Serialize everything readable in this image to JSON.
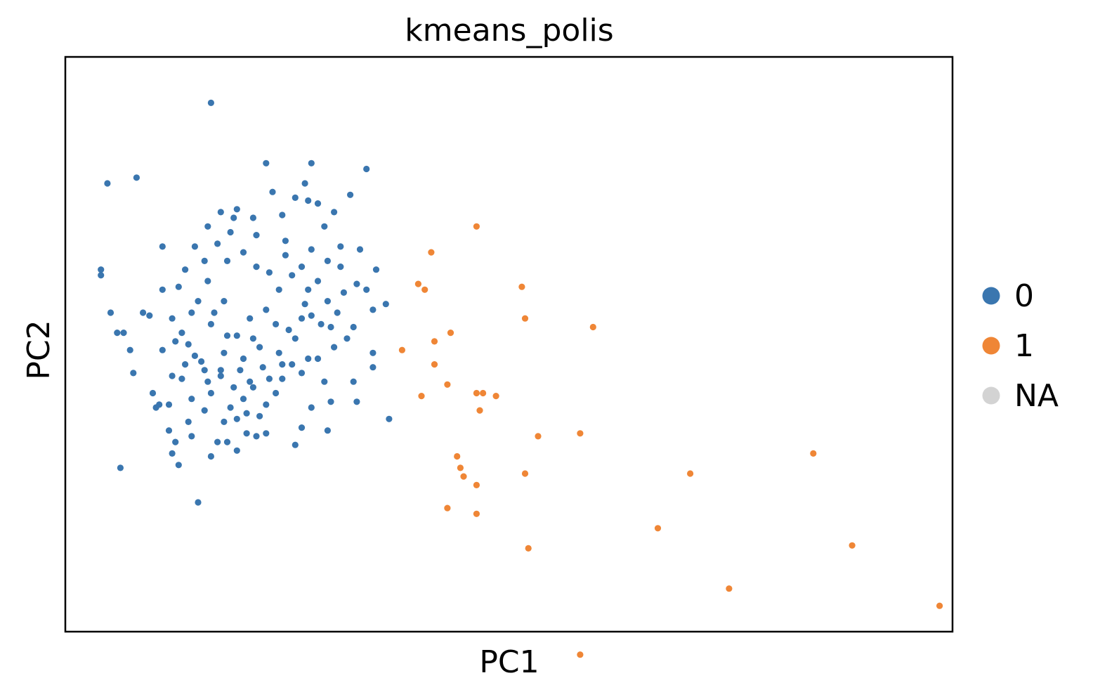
{
  "chart_data": {
    "type": "scatter",
    "title": "kmeans_polis",
    "xlabel": "PC1",
    "ylabel": "PC2",
    "xlim": [
      -3.2,
      10.5
    ],
    "ylim": [
      -5.0,
      5.0
    ],
    "ticks": "none",
    "grid": false,
    "legend_position": "right",
    "legend": [
      {
        "label": "0",
        "color": "#3a76af"
      },
      {
        "label": "1",
        "color": "#ef8636"
      },
      {
        "label": "NA",
        "color": "#d3d3d3"
      }
    ],
    "series": [
      {
        "name": "0",
        "color": "#3a76af",
        "points": [
          [
            -0.95,
            4.2
          ],
          [
            -2.55,
            2.8
          ],
          [
            -2.65,
            1.3
          ],
          [
            -2.65,
            1.2
          ],
          [
            -2.1,
            2.9
          ],
          [
            -1.7,
            1.7
          ],
          [
            -2.5,
            0.55
          ],
          [
            -2.4,
            0.2
          ],
          [
            -2.3,
            0.2
          ],
          [
            -2.2,
            -0.1
          ],
          [
            -2.15,
            -0.5
          ],
          [
            -2.0,
            0.55
          ],
          [
            -1.85,
            -0.85
          ],
          [
            -1.75,
            -1.05
          ],
          [
            -1.8,
            -1.1
          ],
          [
            -1.6,
            -1.5
          ],
          [
            -1.5,
            -1.7
          ],
          [
            -2.35,
            -2.15
          ],
          [
            -1.15,
            -2.75
          ],
          [
            -0.85,
            -1.7
          ],
          [
            -0.55,
            2.35
          ],
          [
            -0.1,
            3.15
          ],
          [
            0.6,
            3.15
          ],
          [
            1.45,
            3.05
          ],
          [
            1.2,
            2.6
          ],
          [
            0.8,
            2.05
          ],
          [
            0.45,
            0.45
          ],
          [
            1.55,
            0.6
          ],
          [
            1.75,
            0.7
          ],
          [
            1.55,
            -0.4
          ],
          [
            1.3,
            -1.0
          ],
          [
            0.35,
            -1.75
          ],
          [
            0.85,
            -1.5
          ],
          [
            -0.1,
            -1.55
          ],
          [
            -0.55,
            -1.3
          ],
          [
            -1.45,
            1.0
          ],
          [
            -1.35,
            1.3
          ],
          [
            -1.2,
            1.7
          ],
          [
            -0.8,
            2.3
          ],
          [
            -0.6,
            2.2
          ],
          [
            -0.3,
            2.2
          ],
          [
            0.0,
            2.65
          ],
          [
            0.35,
            2.55
          ],
          [
            0.15,
            2.25
          ],
          [
            0.5,
            2.8
          ],
          [
            0.55,
            2.5
          ],
          [
            0.7,
            2.45
          ],
          [
            0.95,
            2.3
          ],
          [
            1.05,
            1.7
          ],
          [
            1.35,
            1.65
          ],
          [
            1.05,
            1.35
          ],
          [
            1.3,
            1.05
          ],
          [
            1.1,
            0.9
          ],
          [
            0.9,
            0.3
          ],
          [
            1.25,
            0.3
          ],
          [
            0.95,
            -0.05
          ],
          [
            0.7,
            -0.25
          ],
          [
            0.45,
            -0.5
          ],
          [
            0.15,
            -0.6
          ],
          [
            0.05,
            -0.85
          ],
          [
            -0.1,
            -1.05
          ],
          [
            -0.3,
            -0.75
          ],
          [
            -0.8,
            -0.45
          ],
          [
            -1.0,
            -0.65
          ],
          [
            -1.25,
            -0.95
          ],
          [
            -1.55,
            -0.55
          ],
          [
            -1.7,
            -0.1
          ],
          [
            -1.9,
            0.5
          ],
          [
            -1.7,
            0.95
          ],
          [
            -1.55,
            0.45
          ],
          [
            -1.4,
            0.2
          ],
          [
            -1.2,
            -0.2
          ],
          [
            -1.05,
            -0.45
          ],
          [
            -0.95,
            -0.85
          ],
          [
            -0.65,
            -1.1
          ],
          [
            -0.4,
            -1.2
          ],
          [
            -0.2,
            -1.25
          ],
          [
            -1.15,
            0.75
          ],
          [
            -1.0,
            1.1
          ],
          [
            -0.9,
            0.55
          ],
          [
            -0.75,
            0.75
          ],
          [
            -0.95,
            0.35
          ],
          [
            -0.55,
            0.15
          ],
          [
            -0.35,
            0.45
          ],
          [
            -0.1,
            0.6
          ],
          [
            0.1,
            0.95
          ],
          [
            0.3,
            1.2
          ],
          [
            0.55,
            0.95
          ],
          [
            0.7,
            1.1
          ],
          [
            0.85,
            0.75
          ],
          [
            0.6,
            0.5
          ],
          [
            0.35,
            0.1
          ],
          [
            0.1,
            -0.15
          ],
          [
            -0.15,
            -0.4
          ],
          [
            -0.35,
            -0.65
          ],
          [
            -0.6,
            -0.75
          ],
          [
            -0.8,
            -0.55
          ],
          [
            -1.1,
            -0.3
          ],
          [
            -1.3,
            0.0
          ],
          [
            -1.25,
            0.55
          ],
          [
            -1.05,
            1.45
          ],
          [
            -0.85,
            1.75
          ],
          [
            -0.7,
            1.45
          ],
          [
            -0.45,
            1.6
          ],
          [
            -0.25,
            1.35
          ],
          [
            -0.05,
            1.25
          ],
          [
            0.2,
            1.55
          ],
          [
            0.45,
            1.35
          ],
          [
            0.05,
            0.35
          ],
          [
            -0.2,
            -0.05
          ],
          [
            -0.45,
            -0.25
          ],
          [
            -0.7,
            0.15
          ],
          [
            -0.75,
            -0.15
          ],
          [
            -0.5,
            -0.45
          ],
          [
            -0.3,
            0.1
          ],
          [
            0.25,
            0.25
          ],
          [
            0.5,
            0.7
          ],
          [
            0.75,
            0.35
          ],
          [
            1.0,
            0.55
          ],
          [
            -1.4,
            -0.6
          ],
          [
            -1.6,
            -1.05
          ],
          [
            -1.3,
            -1.35
          ],
          [
            -1.05,
            -1.15
          ],
          [
            -0.75,
            -1.35
          ],
          [
            -0.45,
            -0.95
          ],
          [
            -1.5,
            0.05
          ],
          [
            -1.35,
            -0.35
          ],
          [
            1.55,
            -0.15
          ],
          [
            1.45,
            0.95
          ],
          [
            0.15,
            -0.35
          ],
          [
            -0.05,
            -0.6
          ],
          [
            0.3,
            -0.35
          ],
          [
            0.55,
            -0.25
          ],
          [
            0.8,
            -0.65
          ],
          [
            1.25,
            -0.65
          ],
          [
            1.6,
            1.3
          ],
          [
            1.8,
            -1.3
          ],
          [
            -0.95,
            -1.95
          ],
          [
            -0.7,
            -1.7
          ],
          [
            -0.4,
            -1.55
          ],
          [
            0.6,
            -1.1
          ],
          [
            0.9,
            -1.0
          ],
          [
            1.15,
            0.1
          ],
          [
            -1.0,
            2.05
          ],
          [
            -0.65,
            1.95
          ],
          [
            -0.25,
            1.9
          ],
          [
            0.2,
            1.8
          ],
          [
            0.6,
            1.65
          ],
          [
            0.85,
            1.45
          ],
          [
            -1.25,
            -1.6
          ],
          [
            -1.55,
            -1.9
          ],
          [
            -1.45,
            -2.1
          ],
          [
            -0.55,
            -1.85
          ],
          [
            -0.25,
            -1.6
          ],
          [
            0.45,
            -1.45
          ]
        ]
      },
      {
        "name": "1",
        "color": "#ef8636",
        "points": [
          [
            3.15,
            2.05
          ],
          [
            2.45,
            1.6
          ],
          [
            2.25,
            1.05
          ],
          [
            2.35,
            0.95
          ],
          [
            3.85,
            1.0
          ],
          [
            3.9,
            0.45
          ],
          [
            4.95,
            0.3
          ],
          [
            2.75,
            0.2
          ],
          [
            2.5,
            0.05
          ],
          [
            2.0,
            -0.1
          ],
          [
            2.5,
            -0.35
          ],
          [
            2.7,
            -0.7
          ],
          [
            2.3,
            -0.9
          ],
          [
            3.15,
            -0.85
          ],
          [
            3.25,
            -0.85
          ],
          [
            3.45,
            -0.9
          ],
          [
            3.2,
            -1.15
          ],
          [
            4.1,
            -1.6
          ],
          [
            4.75,
            -1.55
          ],
          [
            2.85,
            -1.95
          ],
          [
            2.9,
            -2.15
          ],
          [
            2.95,
            -2.3
          ],
          [
            3.15,
            -2.45
          ],
          [
            3.9,
            -2.25
          ],
          [
            6.45,
            -2.25
          ],
          [
            8.35,
            -1.9
          ],
          [
            2.7,
            -2.85
          ],
          [
            3.15,
            -2.95
          ],
          [
            5.95,
            -3.2
          ],
          [
            3.95,
            -3.55
          ],
          [
            8.95,
            -3.5
          ],
          [
            7.05,
            -4.25
          ],
          [
            10.3,
            -4.55
          ],
          [
            4.75,
            -5.4
          ]
        ]
      }
    ]
  }
}
